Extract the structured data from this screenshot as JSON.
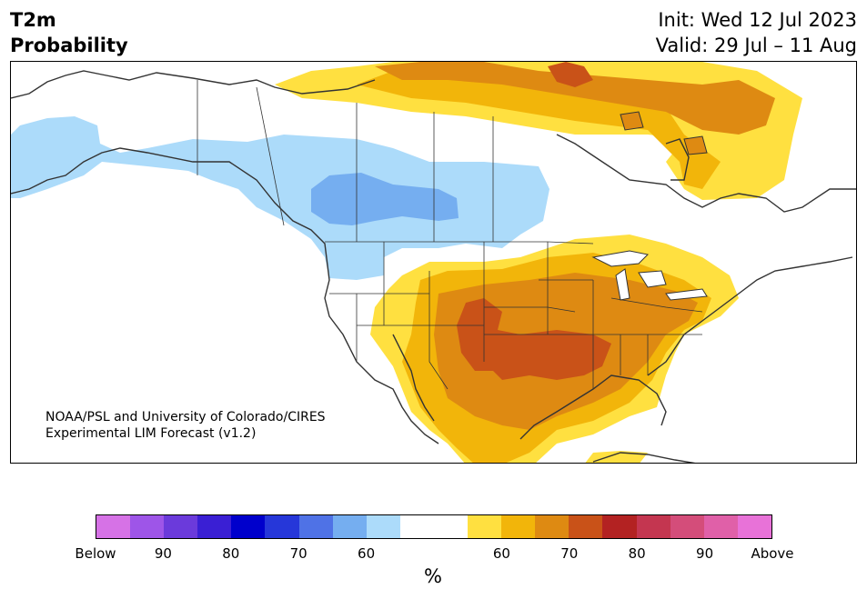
{
  "header": {
    "variable": "T2m",
    "quantity": "Probability",
    "init": "Init: Wed 12 Jul 2023",
    "valid": "Valid: 29 Jul – 11 Aug"
  },
  "credit": {
    "line1": "NOAA/PSL and University of Colorado/CIRES",
    "line2": "Experimental LIM Forecast (v1.2)"
  },
  "legend": {
    "unit": "%",
    "colors": [
      "#d672e6",
      "#9e55e8",
      "#6b3adb",
      "#3a1fd4",
      "#0000cc",
      "#2637d9",
      "#4f72e6",
      "#75aef0",
      "#acdbfa",
      "#ffffff",
      "#ffffff",
      "#ffe040",
      "#f2b50a",
      "#de8a12",
      "#c95218",
      "#b32222",
      "#c43650",
      "#d44d7a",
      "#e060a8",
      "#e872d8"
    ],
    "tick_labels": [
      "Below",
      "90",
      "80",
      "70",
      "60",
      "60",
      "70",
      "80",
      "90",
      "Above"
    ]
  },
  "colors": {
    "below_60": "#acdbfa",
    "below_70": "#75aef0",
    "above_60": "#ffe040",
    "above_70": "#f2b50a",
    "above_80": "#de8a12",
    "above_90": "#c95218",
    "coast": "#333333",
    "state_border": "#333333"
  }
}
